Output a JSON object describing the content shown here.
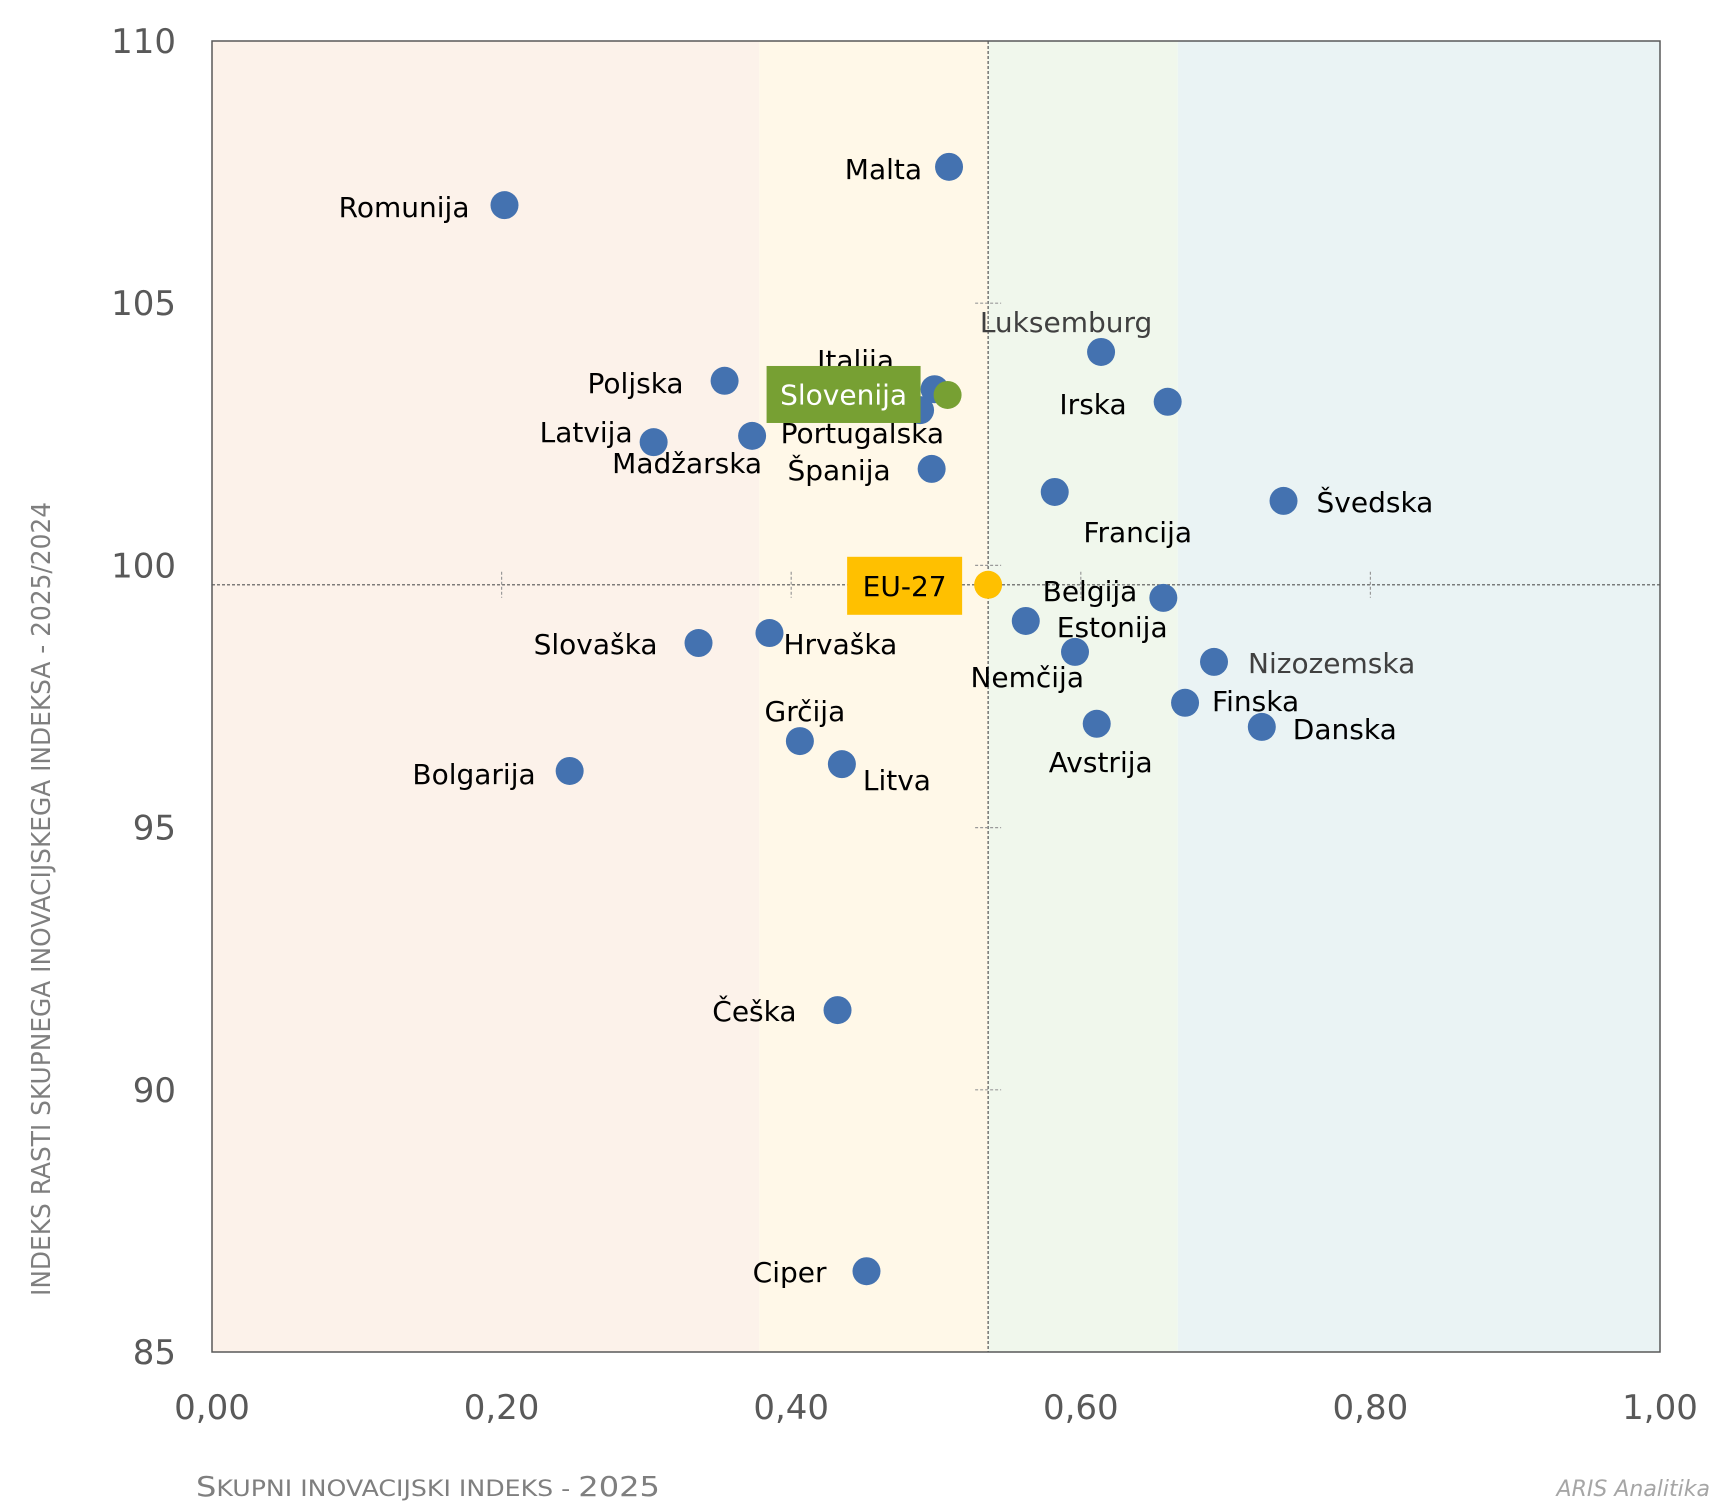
{
  "chart_data": {
    "type": "scatter",
    "title": "",
    "xlabel": "Skupni inovacijski indeks - 2025",
    "ylabel": "INDEKS RASTI SKUPNEGA INOVACIJSKEGA INDEKSA - 2025/2024",
    "xlim": [
      0,
      1
    ],
    "ylim": [
      85,
      110
    ],
    "x_ticks": [
      "0,00",
      "0,20",
      "0,40",
      "0,60",
      "0,80",
      "1,00"
    ],
    "x_tick_values": [
      0,
      0.2,
      0.4,
      0.6,
      0.8,
      1.0
    ],
    "y_ticks": [
      "85",
      "90",
      "95",
      "100",
      "105",
      "110"
    ],
    "y_tick_values": [
      85,
      90,
      95,
      100,
      105,
      110
    ],
    "grid": false,
    "reference_lines": {
      "x": 0.536,
      "y": 99.63
    },
    "bands": [
      {
        "from": 0,
        "to": 0.378,
        "color": "#fcf2ea"
      },
      {
        "from": 0.378,
        "to": 0.536,
        "color": "#fff8e8"
      },
      {
        "from": 0.536,
        "to": 0.667,
        "color": "#f0f7ec"
      },
      {
        "from": 0.667,
        "to": 1.0,
        "color": "#eaf3f4"
      }
    ],
    "colors": {
      "country": "#4472b0",
      "slovenia": "#77a033",
      "eu": "#ffc000",
      "label": "#000000",
      "muted_label": "#404040",
      "axis_text": "#595959"
    },
    "points": [
      {
        "label": "Romunija",
        "x": 0.202,
        "y": 106.87
      },
      {
        "label": "Malta",
        "x": 0.509,
        "y": 107.6
      },
      {
        "label": "Poljska",
        "x": 0.354,
        "y": 103.52
      },
      {
        "label": "Latvija",
        "x": 0.305,
        "y": 102.35
      },
      {
        "label": "Madžarska",
        "x": 0.373,
        "y": 102.47
      },
      {
        "label": "Italija",
        "x": 0.499,
        "y": 103.36
      },
      {
        "label": "Portugalska",
        "x": 0.489,
        "y": 102.96
      },
      {
        "label": "Španija",
        "x": 0.497,
        "y": 101.84
      },
      {
        "label": "Luksemburg",
        "x": 0.614,
        "y": 104.07
      },
      {
        "label": "Irska",
        "x": 0.66,
        "y": 103.12
      },
      {
        "label": "Francija",
        "x": 0.582,
        "y": 101.4
      },
      {
        "label": "Švedska",
        "x": 0.74,
        "y": 101.23
      },
      {
        "label": "Belgija",
        "x": 0.657,
        "y": 99.38
      },
      {
        "label": "Estonija",
        "x": 0.562,
        "y": 98.94
      },
      {
        "label": "Nemčija",
        "x": 0.596,
        "y": 98.35
      },
      {
        "label": "Nizozemska",
        "x": 0.692,
        "y": 98.16
      },
      {
        "label": "Finska",
        "x": 0.672,
        "y": 97.38
      },
      {
        "label": "Danska",
        "x": 0.725,
        "y": 96.92
      },
      {
        "label": "Avstrija",
        "x": 0.611,
        "y": 96.98
      },
      {
        "label": "Slovaška",
        "x": 0.336,
        "y": 98.52
      },
      {
        "label": "Hrvaška",
        "x": 0.385,
        "y": 98.71
      },
      {
        "label": "Grčija",
        "x": 0.406,
        "y": 96.65
      },
      {
        "label": "Litva",
        "x": 0.435,
        "y": 96.21
      },
      {
        "label": "Bolgarija",
        "x": 0.247,
        "y": 96.08
      },
      {
        "label": "Češka",
        "x": 0.432,
        "y": 91.52
      },
      {
        "label": "Ciper",
        "x": 0.452,
        "y": 86.54
      },
      {
        "label": "Slovenija",
        "x": 0.508,
        "y": 103.25,
        "highlight": "slovenia"
      },
      {
        "label": "EU-27",
        "x": 0.536,
        "y": 99.63,
        "highlight": "eu"
      }
    ],
    "credit": "ARIS Analitika"
  }
}
